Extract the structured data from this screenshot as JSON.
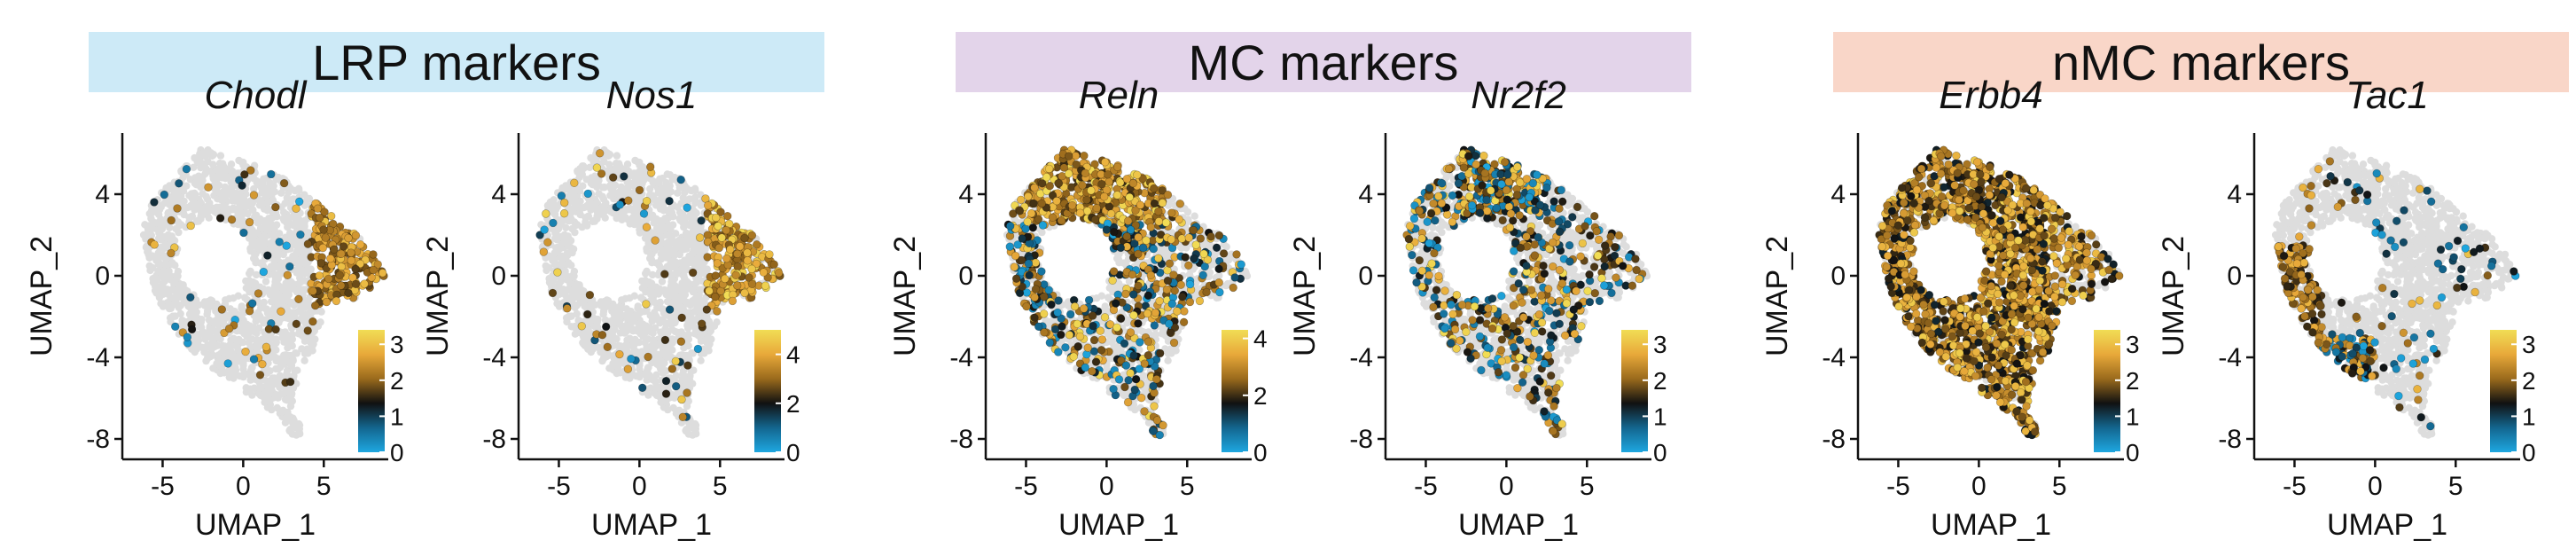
{
  "banners": [
    {
      "label": "LRP markers",
      "color": "#cdeaf7"
    },
    {
      "label": "MC markers",
      "color": "#e3d4ea"
    },
    {
      "label": "nMC markers",
      "color": "#f9d6c8"
    }
  ],
  "colors": {
    "background_cell": "#dddddd",
    "gradient": [
      "#1ea7e0",
      "#13668f",
      "#111111",
      "#9a6a1c",
      "#e8a93a",
      "#f1dd55"
    ]
  },
  "chart_data": [
    {
      "type": "scatter",
      "group": "LRP markers",
      "title": "Chodl",
      "xlabel": "UMAP_1",
      "ylabel": "UMAP_2",
      "xticks": [
        -5,
        0,
        5
      ],
      "yticks": [
        4,
        0,
        -4,
        -8
      ],
      "xlim": [
        -7.5,
        9
      ],
      "ylim": [
        -9,
        7
      ],
      "legend_ticks": [
        3,
        2,
        1,
        0
      ],
      "legend_range": [
        0,
        3.4
      ],
      "legend_position": "bottom-right",
      "expression_pattern": "right-lobe",
      "expression_level": "low"
    },
    {
      "type": "scatter",
      "group": "LRP markers",
      "title": "Nos1",
      "xlabel": "UMAP_1",
      "ylabel": "UMAP_2",
      "xticks": [
        -5,
        0,
        5
      ],
      "yticks": [
        4,
        0,
        -4,
        -8
      ],
      "xlim": [
        -7.5,
        9
      ],
      "ylim": [
        -9,
        7
      ],
      "legend_ticks": [
        4,
        2,
        0
      ],
      "legend_range": [
        0,
        5
      ],
      "legend_position": "bottom-right",
      "expression_pattern": "right-lobe",
      "expression_level": "high"
    },
    {
      "type": "scatter",
      "group": "MC markers",
      "title": "Reln",
      "xlabel": "UMAP_1",
      "ylabel": "UMAP_2",
      "xticks": [
        -5,
        0,
        5
      ],
      "yticks": [
        4,
        0,
        -4,
        -8
      ],
      "xlim": [
        -7.5,
        9
      ],
      "ylim": [
        -9,
        7
      ],
      "legend_ticks": [
        4,
        2,
        0
      ],
      "legend_range": [
        0,
        4.3
      ],
      "legend_position": "bottom-right",
      "expression_pattern": "top-band",
      "expression_level": "mid"
    },
    {
      "type": "scatter",
      "group": "MC markers",
      "title": "Nr2f2",
      "xlabel": "UMAP_1",
      "ylabel": "UMAP_2",
      "xticks": [
        -5,
        0,
        5
      ],
      "yticks": [
        4,
        0,
        -4,
        -8
      ],
      "xlim": [
        -7.5,
        9
      ],
      "ylim": [
        -9,
        7
      ],
      "legend_ticks": [
        3,
        2,
        1,
        0
      ],
      "legend_range": [
        0,
        3.4
      ],
      "legend_position": "bottom-right",
      "expression_pattern": "top-scatter",
      "expression_level": "mid"
    },
    {
      "type": "scatter",
      "group": "nMC markers",
      "title": "Erbb4",
      "xlabel": "UMAP_1",
      "ylabel": "UMAP_2",
      "xticks": [
        -5,
        0,
        5
      ],
      "yticks": [
        4,
        0,
        -4,
        -8
      ],
      "xlim": [
        -7.5,
        9
      ],
      "ylim": [
        -9,
        7
      ],
      "legend_ticks": [
        3,
        2,
        1,
        0
      ],
      "legend_range": [
        0,
        3.4
      ],
      "legend_position": "bottom-right",
      "expression_pattern": "ring",
      "expression_level": "mid"
    },
    {
      "type": "scatter",
      "group": "nMC markers",
      "title": "Tac1",
      "xlabel": "UMAP_1",
      "ylabel": "UMAP_2",
      "xticks": [
        -5,
        0,
        5
      ],
      "yticks": [
        4,
        0,
        -4,
        -8
      ],
      "xlim": [
        -7.5,
        9
      ],
      "ylim": [
        -9,
        7
      ],
      "legend_ticks": [
        3,
        2,
        1,
        0
      ],
      "legend_range": [
        0,
        3.4
      ],
      "legend_position": "bottom-right",
      "expression_pattern": "left-arc",
      "expression_level": "low"
    }
  ]
}
